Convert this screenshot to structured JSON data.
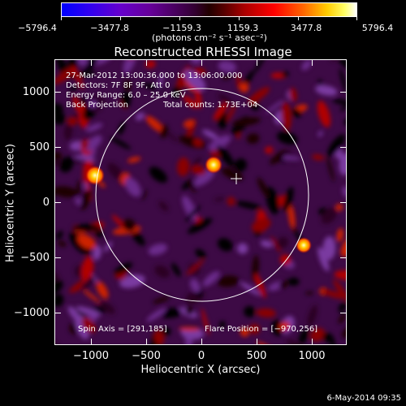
{
  "colorbar": {
    "tick_labels": [
      "−5796.4",
      "−3477.8",
      "−1159.3",
      "1159.3",
      "3477.8",
      "5796.4"
    ],
    "unit": "(photons cm⁻² s⁻¹ asec⁻²)"
  },
  "title": "Reconstructed RHESSI Image",
  "info": {
    "time_range": "27-Mar-2012 13:00:36.000 to 13:06:00.000",
    "detectors": "Detectors: 7F 8F 9F, Att 0",
    "energy_range": "Energy Range: 6.0 – 25.0 keV",
    "method": "Back Projection",
    "total_counts": "Total counts: 1.73E+04",
    "spin_axis": "Spin Axis = [291,185]",
    "flare_position": "Flare Position = [−970,256]"
  },
  "axes": {
    "x_title": "Heliocentric X (arcsec)",
    "y_title": "Heliocentric Y (arcsec)",
    "x_ticks": [
      "−1000",
      "−500",
      "0",
      "500",
      "1000"
    ],
    "y_ticks": [
      "1000",
      "500",
      "0",
      "−500",
      "−1000"
    ]
  },
  "footer": {
    "date": "6-May-2014 09:35"
  },
  "colors": {
    "background": "#000000",
    "image_base": "#3d0a45",
    "limb_circle": "#ffffff"
  }
}
